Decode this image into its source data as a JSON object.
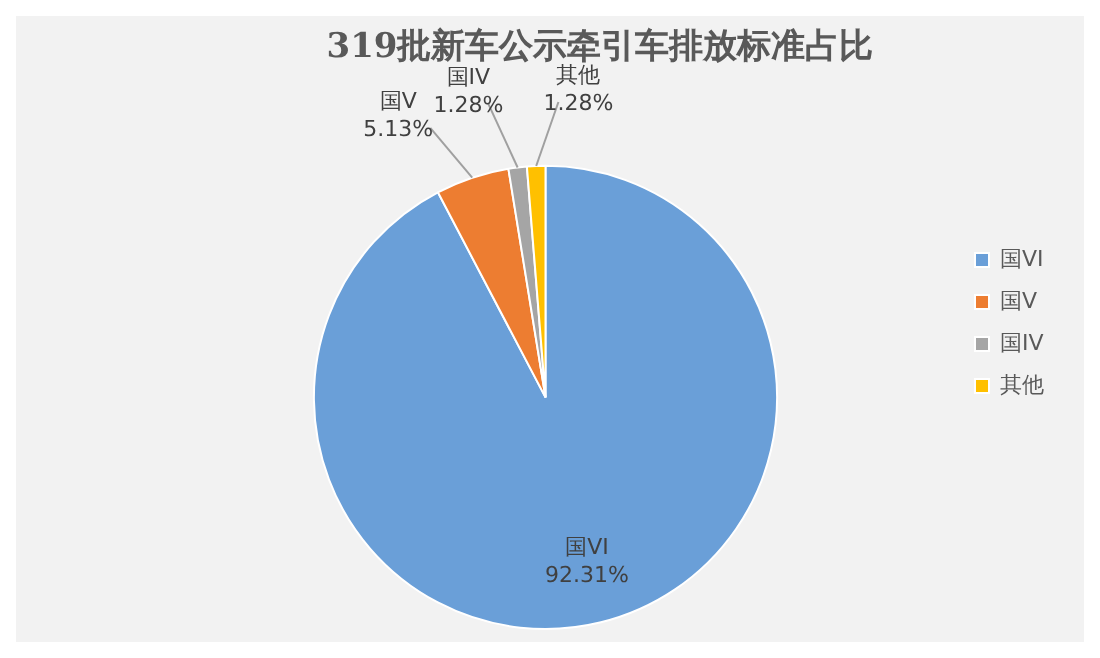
{
  "chart_data": {
    "type": "pie",
    "title": "319批新车公示牵引车排放标准占比",
    "categories": [
      "国VI",
      "国V",
      "国IV",
      "其他"
    ],
    "values": [
      92.31,
      5.13,
      1.28,
      1.28
    ],
    "colors": [
      "#6a9fd8",
      "#ed7d31",
      "#a5a5a5",
      "#ffc000"
    ],
    "value_labels": [
      "92.31%",
      "5.13%",
      "1.28%",
      "1.28%"
    ],
    "legend": "right"
  }
}
